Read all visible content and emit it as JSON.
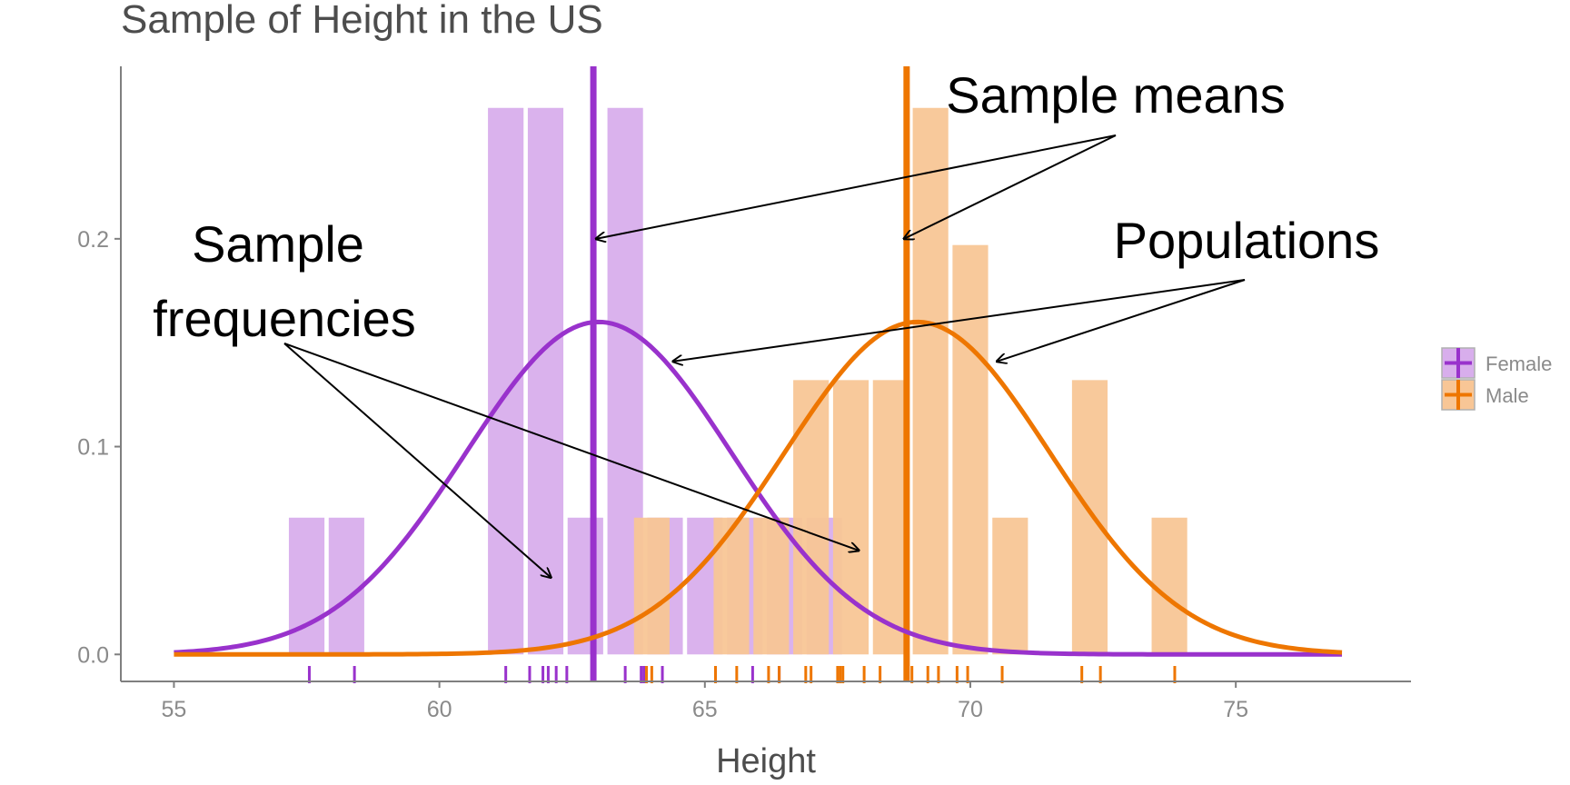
{
  "chart_data": {
    "type": "bar",
    "title": "Sample of Height in the US",
    "xlabel": "Height",
    "ylabel": "",
    "xlim": [
      54,
      78.3
    ],
    "ylim": [
      -0.013,
      0.283
    ],
    "x_ticks": [
      55,
      60,
      65,
      70,
      75
    ],
    "x_tick_labels": [
      "55",
      "60",
      "65",
      "70",
      "75"
    ],
    "y_ticks": [
      0.0,
      0.1,
      0.2
    ],
    "y_tick_labels": [
      "0.0",
      "0.1",
      "0.2"
    ],
    "grid": false,
    "legend_position": "right",
    "colors": {
      "Female": "#9932CC",
      "Male": "#EE7600",
      "Female_fill": "#D8AEEC",
      "Male_fill": "#F8C696",
      "axis": "#7f7f7f",
      "annotation": "#000000"
    },
    "series": [
      {
        "name": "Female",
        "histogram": [
          {
            "x": 57.5,
            "y": 0.0658
          },
          {
            "x": 58.25,
            "y": 0.0658
          },
          {
            "x": 61.25,
            "y": 0.263
          },
          {
            "x": 62.0,
            "y": 0.263
          },
          {
            "x": 62.75,
            "y": 0.0658
          },
          {
            "x": 63.5,
            "y": 0.263
          },
          {
            "x": 64.25,
            "y": 0.0658
          },
          {
            "x": 65.0,
            "y": 0.0658
          },
          {
            "x": 65.75,
            "y": 0.0658
          },
          {
            "x": 66.5,
            "y": 0.0658
          },
          {
            "x": 67.25,
            "y": 0.0658
          }
        ],
        "rug": [
          57.55,
          58.4,
          61.25,
          61.7,
          61.95,
          62.05,
          62.2,
          62.4,
          63.5,
          63.8,
          63.85,
          64.2,
          65.2,
          65.9,
          66.4
        ],
        "sample_mean": 62.9,
        "population_curve": {
          "mean": 63.0,
          "sd": 2.5,
          "peak": 0.16,
          "x_range": [
            55,
            77
          ]
        }
      },
      {
        "name": "Male",
        "histogram": [
          {
            "x": 64.0,
            "y": 0.0658
          },
          {
            "x": 65.5,
            "y": 0.0658
          },
          {
            "x": 66.25,
            "y": 0.0658
          },
          {
            "x": 67.0,
            "y": 0.132
          },
          {
            "x": 67.75,
            "y": 0.132
          },
          {
            "x": 68.5,
            "y": 0.132
          },
          {
            "x": 69.25,
            "y": 0.263
          },
          {
            "x": 70.0,
            "y": 0.197
          },
          {
            "x": 70.75,
            "y": 0.0658
          },
          {
            "x": 72.25,
            "y": 0.132
          },
          {
            "x": 73.75,
            "y": 0.0658
          }
        ],
        "rug": [
          63.9,
          64.0,
          65.2,
          65.6,
          66.2,
          66.4,
          66.9,
          67.0,
          67.5,
          67.55,
          67.6,
          68.0,
          68.3,
          68.9,
          69.2,
          69.4,
          69.75,
          69.95,
          70.6,
          72.1,
          72.45,
          73.85
        ],
        "sample_mean": 68.8,
        "population_curve": {
          "mean": 69.0,
          "sd": 2.5,
          "peak": 0.16,
          "x_range": [
            55,
            77
          ]
        }
      }
    ],
    "annotations": [
      {
        "text": "Sample means",
        "targets": [
          [
            62.95,
            0.2
          ],
          [
            68.75,
            0.2
          ]
        ]
      },
      {
        "text": "Populations",
        "targets": [
          [
            64.4,
            0.141
          ],
          [
            70.5,
            0.141
          ]
        ]
      },
      {
        "text_lines": [
          "Sample",
          "frequencies"
        ],
        "targets": [
          [
            62.1,
            0.037
          ],
          [
            67.9,
            0.05
          ]
        ]
      }
    ]
  }
}
